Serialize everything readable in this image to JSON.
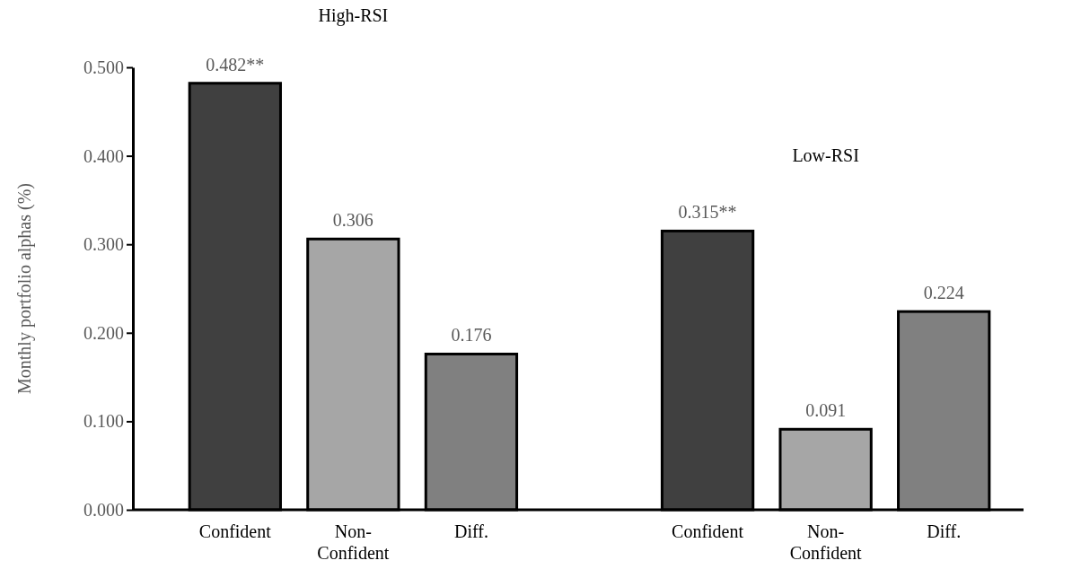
{
  "chart_data": {
    "type": "bar",
    "ylabel": "Monthly portfolio alphas (%)",
    "categories": [
      "Confident",
      "Non-Confident",
      "Diff.",
      null,
      "Confident",
      "Non-Confident",
      "Diff."
    ],
    "values": [
      0.482,
      0.306,
      0.176,
      null,
      0.315,
      0.091,
      0.224
    ],
    "colors": [
      "#404040",
      "#a6a6a6",
      "#808080",
      null,
      "#404040",
      "#a6a6a6",
      "#808080"
    ],
    "value_labels": [
      "0.482**",
      "0.306",
      "0.176",
      null,
      "0.315**",
      "0.091",
      "0.224"
    ],
    "ylim": [
      0,
      0.5
    ],
    "yticks": [
      {
        "value": 0,
        "label": "0.000"
      },
      {
        "value": 0.1,
        "label": "0.100"
      },
      {
        "value": 0.2,
        "label": "0.200"
      },
      {
        "value": 0.3,
        "label": "0.300"
      },
      {
        "value": 0.4,
        "label": "0.400"
      },
      {
        "value": 0.5,
        "label": "0.500"
      }
    ],
    "annotations": [
      "High-RSI",
      "Low-RSI"
    ]
  }
}
